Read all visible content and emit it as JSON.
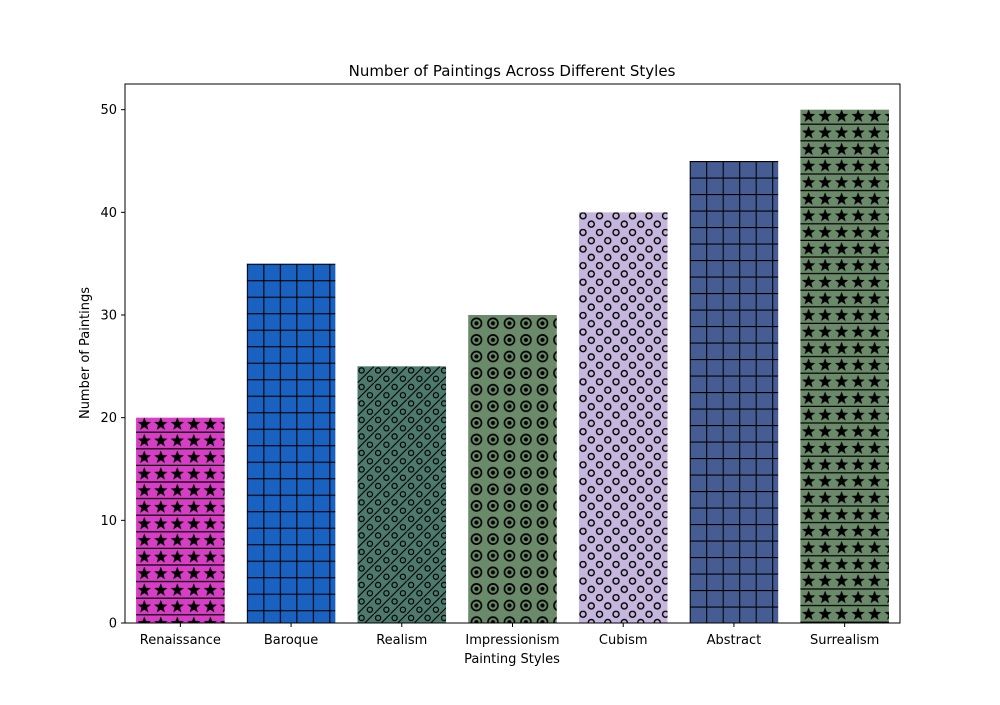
{
  "chart_data": {
    "type": "bar",
    "title": "Number of Paintings Across Different Styles",
    "xlabel": "Painting Styles",
    "ylabel": "Number of Paintings",
    "categories": [
      "Renaissance",
      "Baroque",
      "Realism",
      "Impressionism",
      "Cubism",
      "Abstract",
      "Surrealism"
    ],
    "values": [
      20,
      35,
      25,
      30,
      40,
      45,
      50
    ],
    "ylim": [
      0,
      52.5
    ],
    "yticks": [
      0,
      10,
      20,
      30,
      40,
      50
    ],
    "grid": false,
    "bar_colors": [
      "#d63ec3",
      "#1a62c2",
      "#4d7a6d",
      "#6b8a6a",
      "#c4b6dc",
      "#465d94",
      "#6b8a6a"
    ],
    "bar_hatches": [
      "stars-lines",
      "grid",
      "diagonal-circles",
      "bullseye",
      "circles",
      "grid",
      "stars-lines"
    ],
    "edge_color": "#000000"
  }
}
